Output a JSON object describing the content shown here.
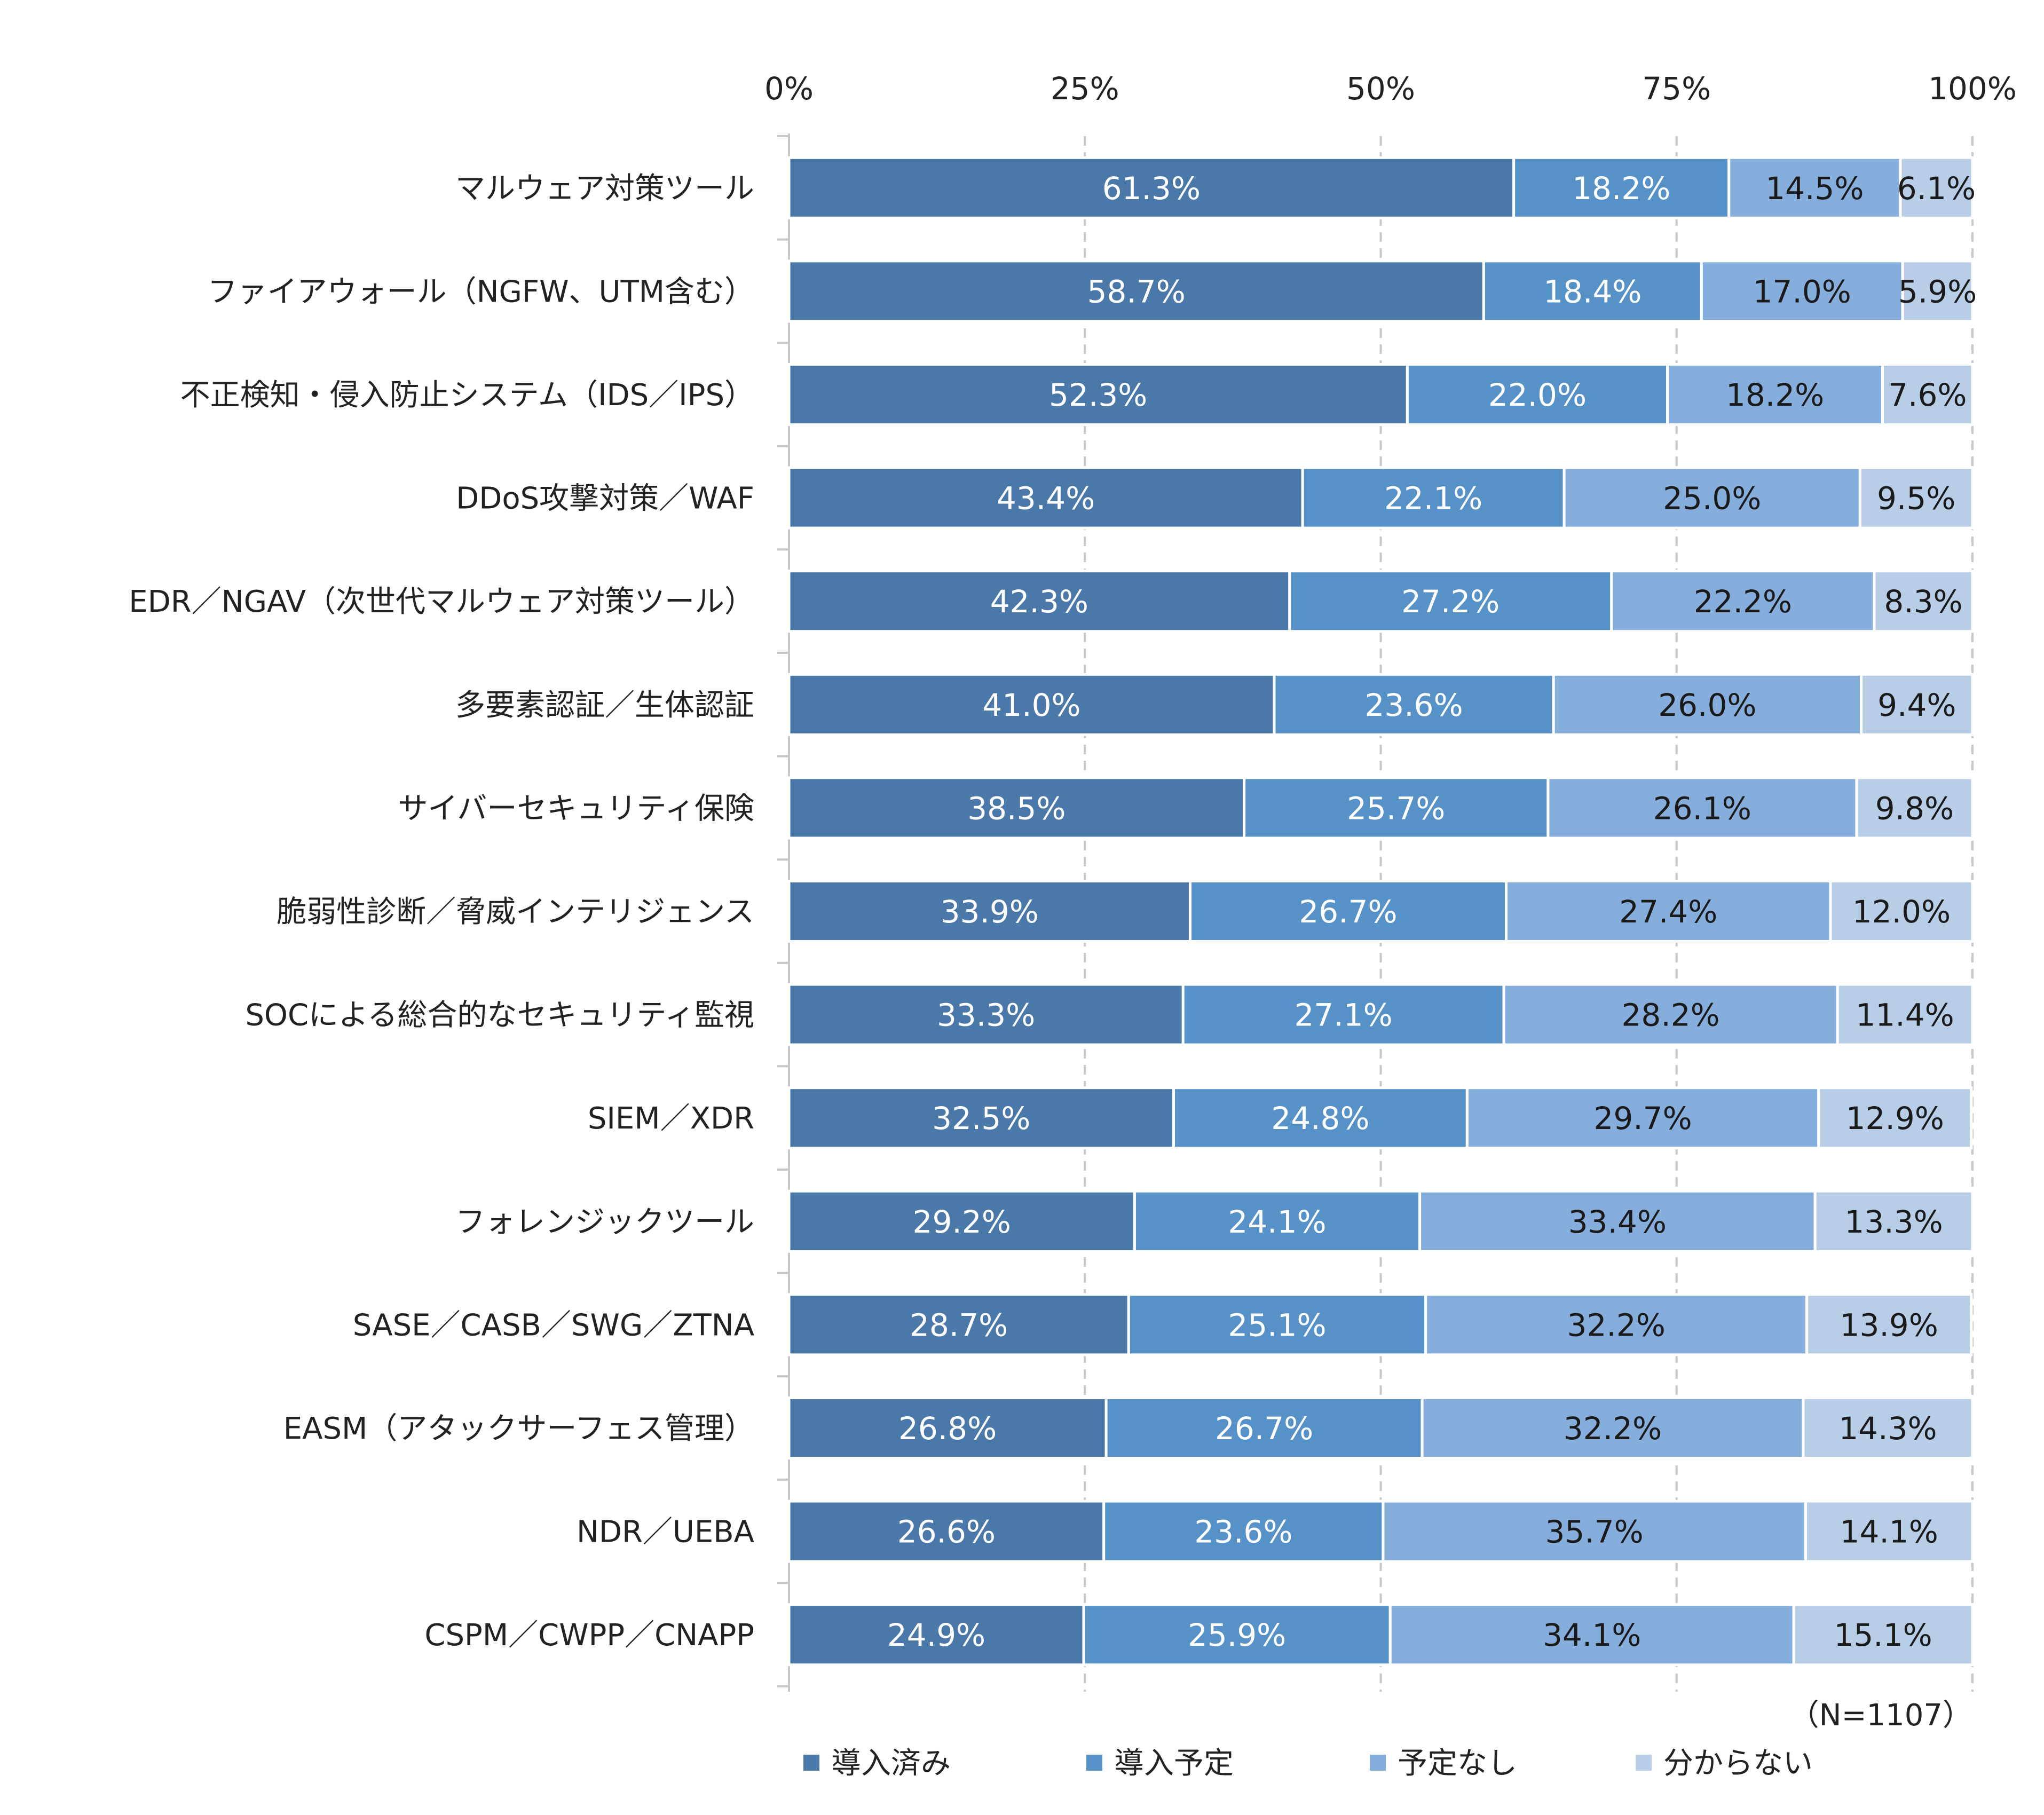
{
  "chart_data": {
    "type": "bar",
    "orientation": "horizontal",
    "stacked": true,
    "title": "",
    "xlabel": "",
    "ylabel": "",
    "xlim": [
      0,
      100
    ],
    "x_ticks": [
      "0%",
      "25%",
      "50%",
      "75%",
      "100%"
    ],
    "grid": "vertical dashed",
    "legend_position": "bottom",
    "note": "（N=1107）",
    "categories": [
      "マルウェア対策ツール",
      "ファイアウォール（NGFW、UTM含む）",
      "不正検知・侵入防止システム（IDS／IPS）",
      "DDoS攻撃対策／WAF",
      "EDR／NGAV（次世代マルウェア対策ツール）",
      "多要素認証／生体認証",
      "サイバーセキュリティ保険",
      "脆弱性診断／脅威インテリジェンス",
      "SOCによる総合的なセキュリティ監視",
      "SIEM／XDR",
      "フォレンジックツール",
      "SASE／CASB／SWG／ZTNA",
      "EASM（アタックサーフェス管理）",
      "NDR／UEBA",
      "CSPM／CWPP／CNAPP"
    ],
    "series": [
      {
        "name": "導入済み",
        "color": "#4a78a8",
        "label_color": "#ffffff",
        "values": [
          61.3,
          58.7,
          52.3,
          43.4,
          42.3,
          41.0,
          38.5,
          33.9,
          33.3,
          32.5,
          29.2,
          28.7,
          26.8,
          26.6,
          24.9
        ]
      },
      {
        "name": "導入予定",
        "color": "#5691c8",
        "label_color": "#ffffff",
        "values": [
          18.2,
          18.4,
          22.0,
          22.1,
          27.2,
          23.6,
          25.7,
          26.7,
          27.1,
          24.8,
          24.1,
          25.1,
          26.7,
          23.6,
          25.9
        ]
      },
      {
        "name": "予定なし",
        "color": "#85aedc",
        "label_color": "#1a1a1a",
        "values": [
          14.5,
          17.0,
          18.2,
          25.0,
          22.2,
          26.0,
          26.1,
          27.4,
          28.2,
          29.7,
          33.4,
          32.2,
          32.2,
          35.7,
          34.1
        ]
      },
      {
        "name": "分からない",
        "color": "#b8cde6",
        "label_color": "#1a1a1a",
        "values": [
          6.1,
          5.9,
          7.6,
          9.5,
          8.3,
          9.4,
          9.8,
          12.0,
          11.4,
          12.9,
          13.3,
          13.9,
          14.3,
          14.1,
          15.1
        ]
      }
    ]
  }
}
